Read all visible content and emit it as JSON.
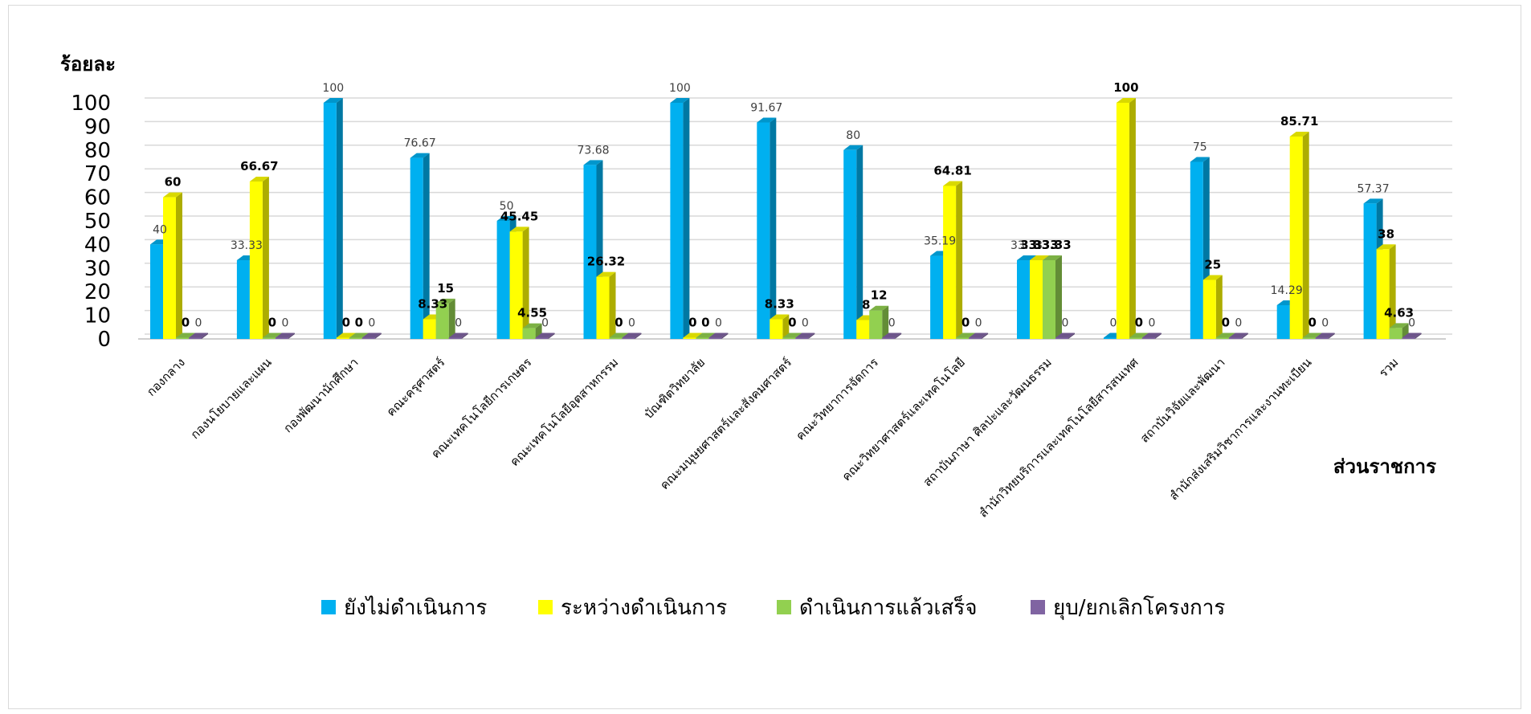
{
  "chart_data": {
    "type": "bar",
    "ylabel": "ร้อยละ",
    "xlabel": "ส่วนราชการ",
    "ylim": [
      0,
      100
    ],
    "yticks": [
      "0",
      "10",
      "20",
      "30",
      "40",
      "50",
      "60",
      "70",
      "80",
      "90",
      "100"
    ],
    "grid": true,
    "legend_position": "bottom",
    "categories": [
      "กองกลาง",
      "กองนโยบายและแผน",
      "กองพัฒนานักศึกษา",
      "คณะครุศาสตร์",
      "คณะเทคโนโลยีการเกษตร",
      "คณะเทคโนโลยีอุตสาหกรรม",
      "บัณฑิตวิทยาลัย",
      "คณะมนุษยศาสตร์และสังคมศาสตร์",
      "คณะวิทยาการจัดการ",
      "คณะวิทยาศาสตร์และเทคโนโลยี",
      "สถาบันภาษา ศิลปะและวัฒนธรรม",
      "สำนักวิทยบริการและเทคโนโลยีสารสนเทศ",
      "สถาบันวิจัยและพัฒนา",
      "สำนักส่งเสริมวิชาการและงานทะเบียน",
      "รวม"
    ],
    "series": [
      {
        "name": "ยังไม่ดำเนินการ",
        "color": "#00b0f0",
        "values": [
          40,
          33.33,
          100,
          76.67,
          50,
          73.68,
          100,
          91.67,
          80,
          35.19,
          33.33,
          0,
          75,
          14.29,
          57.37
        ],
        "labels": [
          "40",
          "33.33",
          "100",
          "76.67",
          "50",
          "73.68",
          "100",
          "91.67",
          "80",
          "35.19",
          "33.33",
          "0",
          "75",
          "14.29",
          "57.37"
        ]
      },
      {
        "name": "ระหว่างดำเนินการ",
        "color": "#ffff00",
        "values": [
          60,
          66.67,
          0,
          8.33,
          45.45,
          26.32,
          0,
          8.33,
          8,
          64.81,
          33.33,
          100,
          25,
          85.71,
          38
        ],
        "labels": [
          "60",
          "66.67",
          "0",
          "8.33",
          "45.45",
          "26.32",
          "0",
          "8.33",
          "8",
          "64.81",
          "33.33",
          "100",
          "25",
          "85.71",
          "38"
        ]
      },
      {
        "name": "ดำเนินการแล้วเสร็จ",
        "color": "#92d050",
        "values": [
          0,
          0,
          0,
          15,
          4.55,
          0,
          0,
          0,
          12,
          0,
          33.33,
          0,
          0,
          0,
          4.63
        ],
        "labels": [
          "0",
          "0",
          "0",
          "15",
          "4.55",
          "0",
          "0",
          "0",
          "12",
          "0",
          "33.33",
          "0",
          "0",
          "0",
          "4.63"
        ]
      },
      {
        "name": "ยุบ/ยกเลิกโครงการ",
        "color": "#8064a2",
        "values": [
          0,
          0,
          0,
          0,
          0,
          0,
          0,
          0,
          0,
          0,
          0,
          0,
          0,
          0,
          0
        ],
        "labels": [
          "0",
          "0",
          "0",
          "0",
          "0",
          "0",
          "0",
          "0",
          "0",
          "0",
          "0",
          "0",
          "0",
          "0",
          "0"
        ]
      }
    ]
  }
}
